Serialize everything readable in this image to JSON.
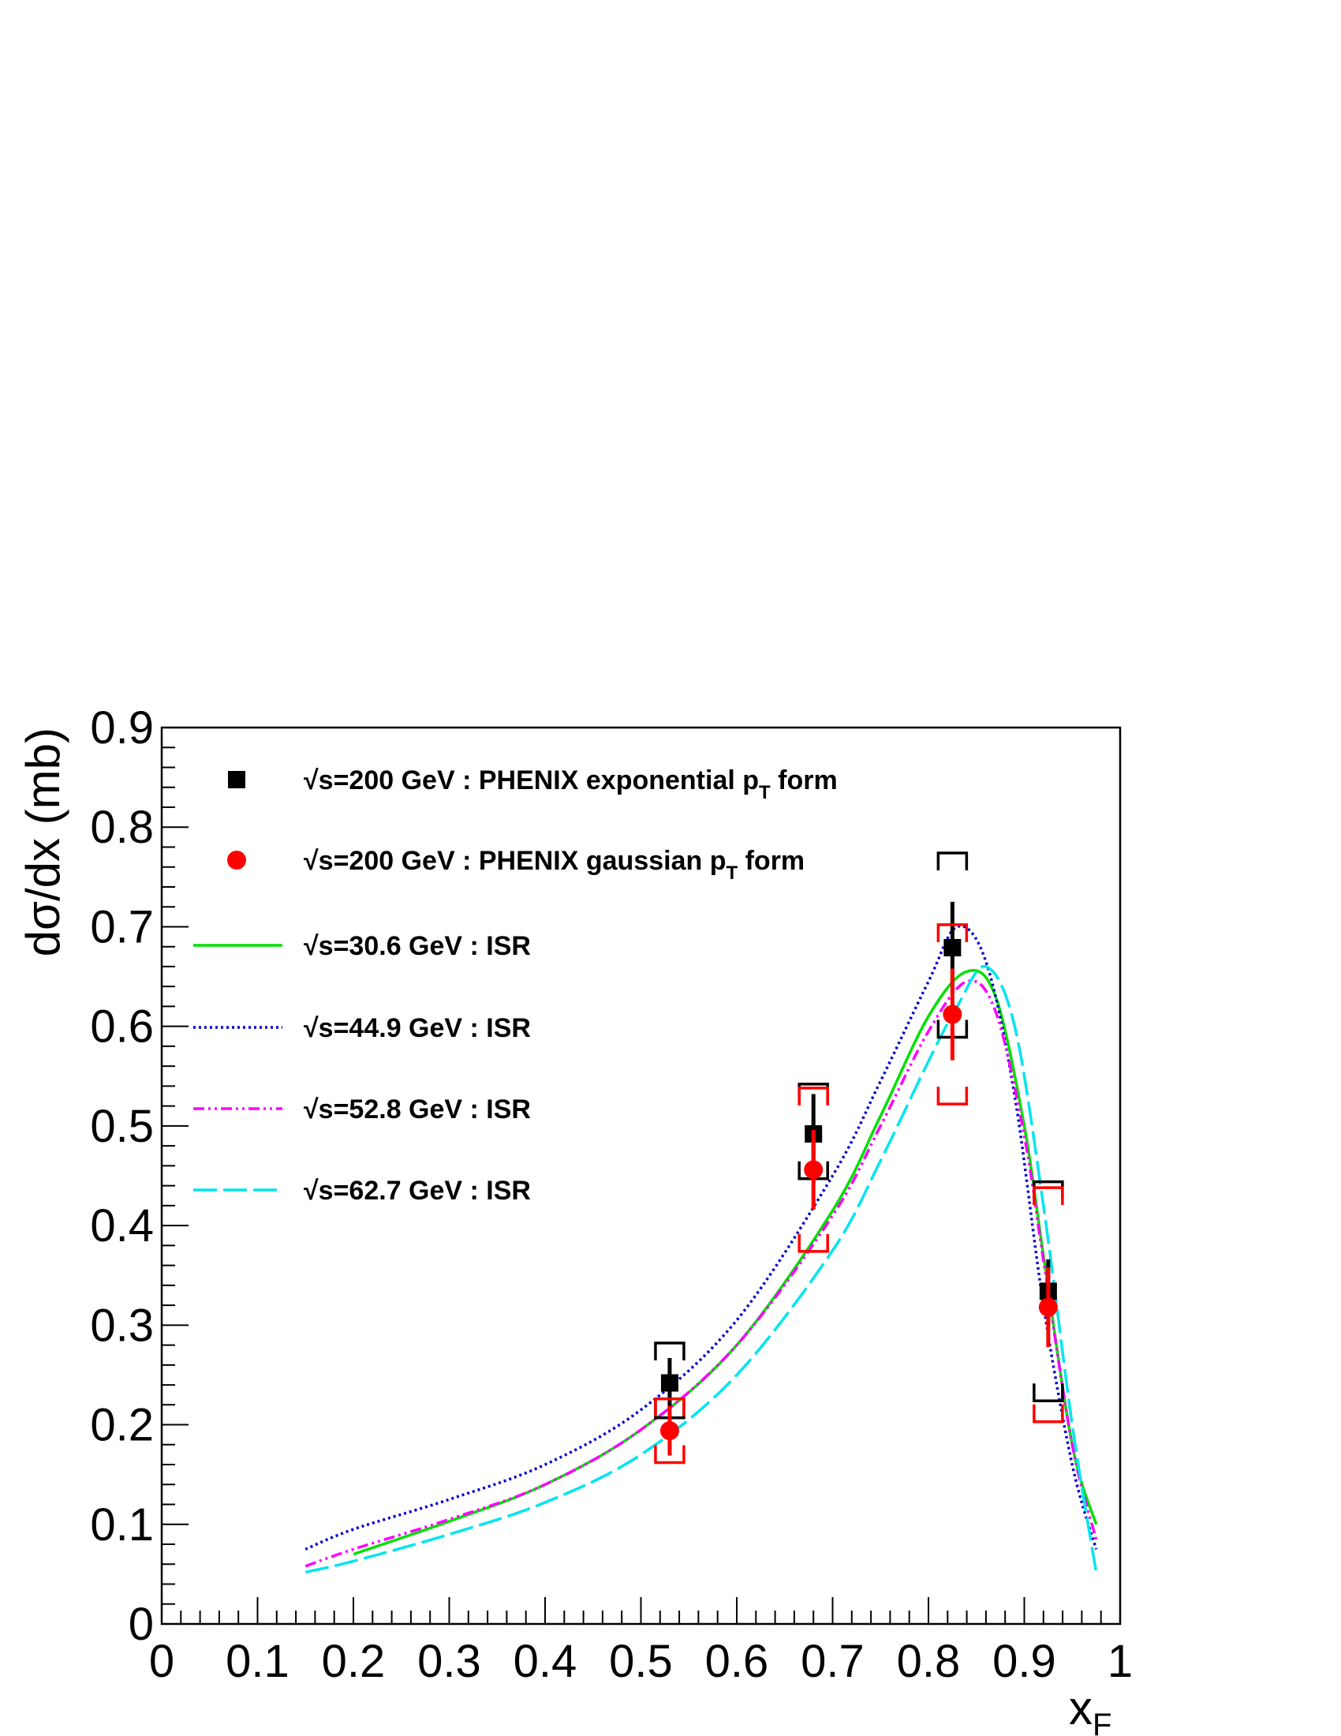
{
  "chart_data": {
    "type": "scatter",
    "title": "",
    "xlabel": "x",
    "xlabel_sub": "F",
    "ylabel": "dσ/dx (mb)",
    "xlim": [
      0,
      1
    ],
    "ylim": [
      0,
      0.9
    ],
    "x_ticks": [
      "0",
      "0.1",
      "0.2",
      "0.3",
      "0.4",
      "0.5",
      "0.6",
      "0.7",
      "0.8",
      "0.9",
      "1"
    ],
    "y_ticks": [
      "0",
      "0.1",
      "0.2",
      "0.3",
      "0.4",
      "0.5",
      "0.6",
      "0.7",
      "0.8",
      "0.9"
    ],
    "grid": false,
    "legend_placement": "top-left",
    "series": [
      {
        "name": "√s=200 GeV : PHENIX exponential p_T form",
        "label_parts": [
          "√s=200 GeV : PHENIX exponential p",
          "T",
          " form"
        ],
        "kind": "points",
        "marker": "square",
        "color": "#000000",
        "x": [
          0.53,
          0.68,
          0.825,
          0.925
        ],
        "y": [
          0.242,
          0.492,
          0.679,
          0.334
        ],
        "stat_err": [
          0.025,
          0.04,
          0.046,
          0.032
        ],
        "sys_low": [
          0.035,
          0.045,
          0.09,
          0.11
        ],
        "sys_high": [
          0.04,
          0.05,
          0.095,
          0.11
        ]
      },
      {
        "name": "√s=200 GeV : PHENIX gaussian p_T form",
        "label_parts": [
          "√s=200 GeV : PHENIX gaussian p",
          "T",
          " form"
        ],
        "kind": "points",
        "marker": "circle",
        "color": "#ff0000",
        "x": [
          0.53,
          0.68,
          0.825,
          0.925
        ],
        "y": [
          0.194,
          0.456,
          0.612,
          0.318
        ],
        "stat_err": [
          0.025,
          0.04,
          0.046,
          0.04
        ],
        "sys_low": [
          0.032,
          0.082,
          0.09,
          0.115
        ],
        "sys_high": [
          0.032,
          0.082,
          0.09,
          0.12
        ]
      },
      {
        "name": "√s=30.6 GeV : ISR",
        "label_parts": [
          "√s=30.6 GeV : ISR"
        ],
        "kind": "line",
        "style": "solid",
        "color": "#00e000",
        "x": [
          0.2,
          0.3,
          0.4,
          0.5,
          0.6,
          0.7,
          0.75,
          0.8,
          0.84,
          0.87,
          0.9,
          0.92,
          0.95,
          0.975
        ],
        "y": [
          0.07,
          0.103,
          0.14,
          0.195,
          0.28,
          0.415,
          0.51,
          0.61,
          0.655,
          0.63,
          0.5,
          0.37,
          0.18,
          0.1
        ]
      },
      {
        "name": "√s=44.9 GeV : ISR",
        "label_parts": [
          "√s=44.9 GeV : ISR"
        ],
        "kind": "line",
        "style": "dotted",
        "color": "#0000cc",
        "x": [
          0.15,
          0.2,
          0.3,
          0.4,
          0.5,
          0.6,
          0.7,
          0.75,
          0.8,
          0.83,
          0.86,
          0.89,
          0.92,
          0.95,
          0.975
        ],
        "y": [
          0.075,
          0.095,
          0.125,
          0.16,
          0.215,
          0.305,
          0.45,
          0.545,
          0.645,
          0.7,
          0.665,
          0.53,
          0.32,
          0.16,
          0.075
        ]
      },
      {
        "name": "√s=52.8 GeV : ISR",
        "label_parts": [
          "√s=52.8 GeV : ISR"
        ],
        "kind": "line",
        "style": "dashdot",
        "color": "#ff00ff",
        "x": [
          0.15,
          0.2,
          0.3,
          0.4,
          0.5,
          0.6,
          0.7,
          0.75,
          0.8,
          0.84,
          0.87,
          0.9,
          0.92,
          0.95,
          0.975
        ],
        "y": [
          0.058,
          0.075,
          0.105,
          0.14,
          0.195,
          0.28,
          0.41,
          0.5,
          0.595,
          0.645,
          0.615,
          0.49,
          0.365,
          0.18,
          0.085
        ]
      },
      {
        "name": "√s=62.7 GeV : ISR",
        "label_parts": [
          "√s=62.7 GeV : ISR"
        ],
        "kind": "line",
        "style": "longdash",
        "color": "#00e5ee",
        "x": [
          0.15,
          0.2,
          0.3,
          0.4,
          0.5,
          0.6,
          0.7,
          0.75,
          0.8,
          0.83,
          0.86,
          0.89,
          0.92,
          0.95,
          0.975
        ],
        "y": [
          0.052,
          0.063,
          0.09,
          0.122,
          0.17,
          0.25,
          0.375,
          0.465,
          0.565,
          0.62,
          0.66,
          0.6,
          0.42,
          0.2,
          0.052
        ]
      }
    ]
  }
}
